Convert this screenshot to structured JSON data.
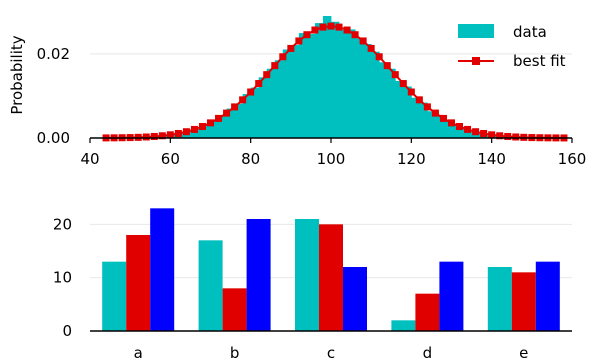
{
  "colors": {
    "data": "#00bfbf",
    "fit": "#e00000",
    "blue": "#0000ff",
    "grid": "#e8e8e8",
    "axis": "#000000"
  },
  "chart_data": [
    {
      "type": "bar",
      "subtype": "histogram-with-fit",
      "ylabel": "Probability",
      "xlim": [
        40,
        160
      ],
      "ylim": [
        0,
        0.029
      ],
      "xticks": [
        "40",
        "60",
        "80",
        "100",
        "120",
        "140",
        "160"
      ],
      "yticks": [
        "0.00",
        "0.02"
      ],
      "grid": true,
      "legend_position": "top-right",
      "legend": [
        {
          "label": "data",
          "kind": "patch"
        },
        {
          "label": "best fit",
          "kind": "line-marker"
        }
      ],
      "histogram": {
        "bin_start": 40,
        "bin_width": 2,
        "heights": []
      },
      "fit": {
        "mean": 100,
        "std": 15,
        "x_start": 44,
        "x_end": 158,
        "step": 2
      }
    },
    {
      "type": "bar",
      "categories": [
        "a",
        "b",
        "c",
        "d",
        "e"
      ],
      "series": [
        {
          "values": [
            13,
            17,
            21,
            2,
            12
          ]
        },
        {
          "values": [
            18,
            8,
            20,
            7,
            11
          ]
        },
        {
          "values": [
            23,
            21,
            12,
            13,
            13
          ]
        }
      ],
      "ylim": [
        0,
        24
      ],
      "yticks": [
        "0",
        "10",
        "20"
      ],
      "grid": true
    }
  ]
}
